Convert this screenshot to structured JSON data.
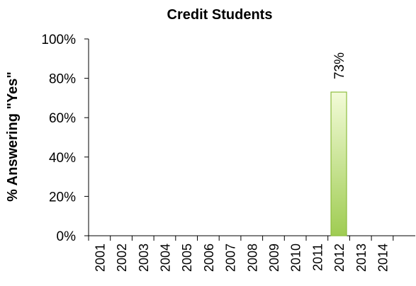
{
  "chart_data": {
    "type": "bar",
    "title": "Credit Students",
    "xlabel": "",
    "ylabel": "% Answering \"Yes\"",
    "categories": [
      "2001",
      "2002",
      "2003",
      "2004",
      "2005",
      "2006",
      "2007",
      "2008",
      "2009",
      "2010",
      "2011",
      "2012",
      "2013",
      "2014"
    ],
    "values": [
      null,
      null,
      null,
      null,
      null,
      null,
      null,
      null,
      null,
      null,
      null,
      73,
      null,
      null
    ],
    "data_labels": [
      "",
      "",
      "",
      "",
      "",
      "",
      "",
      "",
      "",
      "",
      "",
      "73%",
      "",
      ""
    ],
    "ylim": [
      0,
      100
    ],
    "yticks": [
      {
        "value": 0,
        "label": "0%"
      },
      {
        "value": 20,
        "label": "20%"
      },
      {
        "value": 40,
        "label": "40%"
      },
      {
        "value": 60,
        "label": "60%"
      },
      {
        "value": 80,
        "label": "80%"
      },
      {
        "value": 100,
        "label": "100%"
      }
    ],
    "grid": false,
    "legend": "none",
    "colors": {
      "bar_fill_top": "#f3fbd8",
      "bar_fill_bottom": "#9fcc52",
      "bar_stroke": "#8dbd3e",
      "axis": "#000000"
    }
  }
}
